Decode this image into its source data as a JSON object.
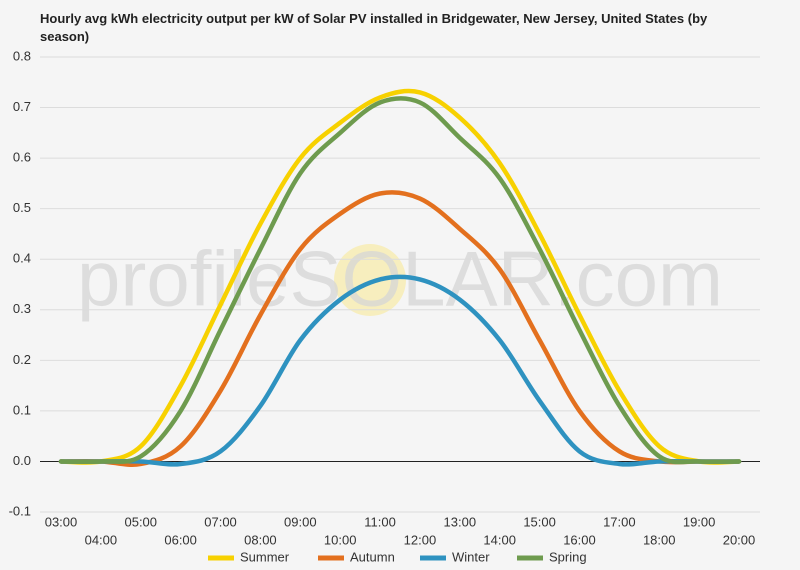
{
  "chart_data": {
    "type": "line",
    "title": "Hourly avg kWh electricity output per kW of Solar PV installed in Bridgewater, New Jersey, United States (by season)",
    "watermark": "profileSOLAR.com",
    "categories": [
      "03:00",
      "04:00",
      "05:00",
      "06:00",
      "07:00",
      "08:00",
      "09:00",
      "10:00",
      "11:00",
      "12:00",
      "13:00",
      "14:00",
      "15:00",
      "16:00",
      "17:00",
      "18:00",
      "19:00",
      "20:00"
    ],
    "series": [
      {
        "name": "Summer",
        "color": "#f7d100",
        "values": [
          0,
          0,
          0.03,
          0.15,
          0.31,
          0.47,
          0.6,
          0.67,
          0.72,
          0.73,
          0.68,
          0.59,
          0.45,
          0.29,
          0.14,
          0.03,
          0,
          0
        ]
      },
      {
        "name": "Autumn",
        "color": "#e3701e",
        "values": [
          0,
          0,
          -0.005,
          0.03,
          0.14,
          0.29,
          0.42,
          0.49,
          0.53,
          0.52,
          0.46,
          0.38,
          0.24,
          0.1,
          0.02,
          0,
          0,
          0
        ]
      },
      {
        "name": "Winter",
        "color": "#2e92c0",
        "values": [
          0,
          0,
          0,
          -0.005,
          0.02,
          0.11,
          0.24,
          0.32,
          0.36,
          0.36,
          0.32,
          0.24,
          0.12,
          0.02,
          -0.005,
          0,
          0,
          0
        ]
      },
      {
        "name": "Spring",
        "color": "#6e9b4e",
        "values": [
          0,
          0,
          0.01,
          0.1,
          0.26,
          0.42,
          0.57,
          0.65,
          0.71,
          0.71,
          0.64,
          0.56,
          0.42,
          0.26,
          0.11,
          0.01,
          0,
          0
        ]
      }
    ],
    "ylim": [
      -0.1,
      0.8
    ],
    "yticks": [
      -0.1,
      {
        "value": 0,
        "label": "0.0"
      },
      0.1,
      0.2,
      0.3,
      0.4,
      0.5,
      0.6,
      0.7,
      0.8
    ],
    "grid": true,
    "legend": "bottom"
  }
}
